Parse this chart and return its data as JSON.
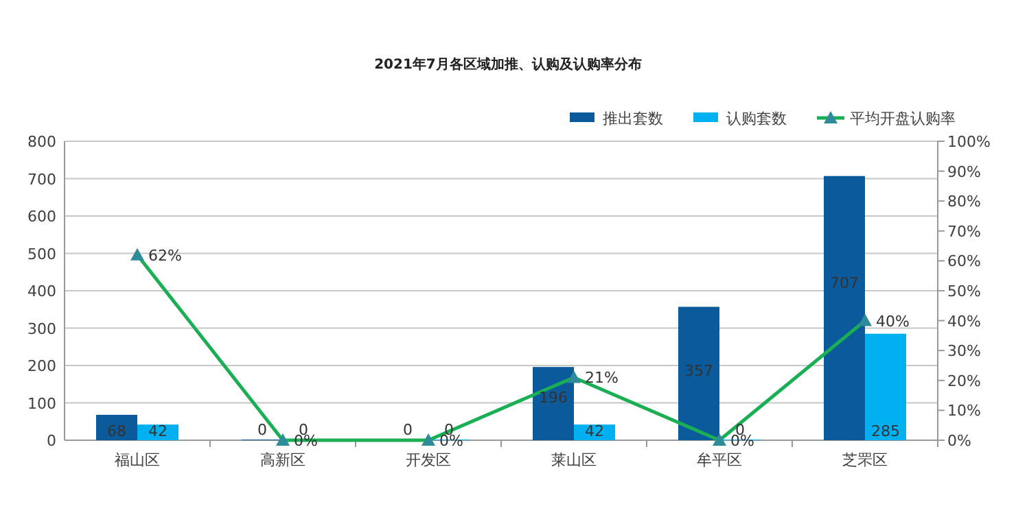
{
  "chart_data": {
    "type": "bar",
    "title": "2021年7月各区域加推、认购及认购率分布",
    "categories": [
      "福山区",
      "高新区",
      "开发区",
      "莱山区",
      "牟平区",
      "芝罘区"
    ],
    "series": [
      {
        "name": "推出套数",
        "color": "#0b5a9c",
        "values": [
          68,
          0,
          0,
          196,
          357,
          707
        ],
        "value_labels": [
          "68",
          "0",
          "0",
          "196",
          "357",
          "707"
        ]
      },
      {
        "name": "认购套数",
        "color": "#00b0f0",
        "values": [
          42,
          0,
          0,
          42,
          0,
          285
        ],
        "value_labels": [
          "42",
          "0",
          "0",
          "42",
          "0",
          "285"
        ]
      },
      {
        "name": "平均开盘认购率",
        "type": "line",
        "axis": "y2",
        "color": "#1aaf54",
        "marker": "triangle",
        "values": [
          62,
          0,
          0,
          21,
          0,
          40
        ],
        "value_labels": [
          "62%",
          "0%",
          "0%",
          "21%",
          "0%",
          "40%"
        ]
      }
    ],
    "ylim": [
      0,
      800
    ],
    "yticks": [
      0,
      100,
      200,
      300,
      400,
      500,
      600,
      700,
      800
    ],
    "y2lim": [
      0,
      100
    ],
    "y2ticks": [
      {
        "value": 0,
        "label": "0%"
      },
      {
        "value": 10,
        "label": "10%"
      },
      {
        "value": 20,
        "label": "20%"
      },
      {
        "value": 30,
        "label": "30%"
      },
      {
        "value": 40,
        "label": "40%"
      },
      {
        "value": 50,
        "label": "50%"
      },
      {
        "value": 60,
        "label": "60%"
      },
      {
        "value": 70,
        "label": "70%"
      },
      {
        "value": 80,
        "label": "80%"
      },
      {
        "value": 90,
        "label": "90%"
      },
      {
        "value": 100,
        "label": "100%"
      }
    ],
    "grid": "y",
    "legend": "top right"
  }
}
